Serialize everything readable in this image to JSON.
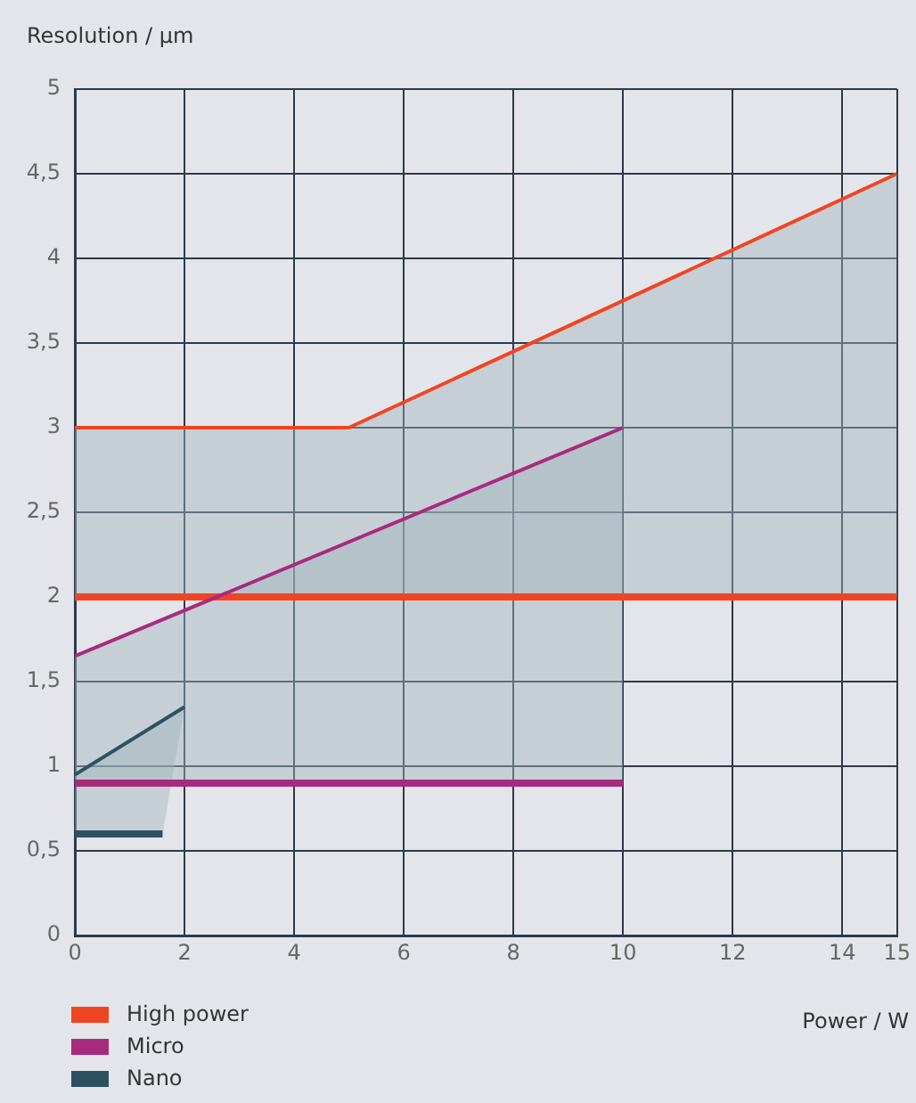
{
  "chart_data": {
    "type": "line",
    "xlabel": "Power / W",
    "ylabel": "Resolution / μm",
    "xlim": [
      0,
      15
    ],
    "xticks": [
      0,
      2,
      4,
      6,
      8,
      10,
      12,
      14,
      15
    ],
    "ylim": [
      0,
      5
    ],
    "yticks": [
      0,
      {
        "value": 0.5,
        "label": "0,5"
      },
      1,
      {
        "value": 1.5,
        "label": "1,5"
      },
      2,
      {
        "value": 2.5,
        "label": "2,5"
      },
      3,
      {
        "value": 3.5,
        "label": "3,5"
      },
      4,
      {
        "value": 4.5,
        "label": "4,5"
      },
      5
    ],
    "grid": true,
    "legend": "bottom left",
    "marker": "none",
    "line_style": "solid",
    "series": [
      {
        "name": "High power",
        "color": "#f04523",
        "x": [
          0,
          5,
          15
        ],
        "values": [
          3,
          3,
          4.5
        ],
        "lower": [
          2,
          2,
          2
        ],
        "upper": [
          3,
          3,
          4.5
        ]
      },
      {
        "name": "Micro",
        "color": "#a82a7d",
        "x": [
          0,
          10
        ],
        "values": [
          1.65,
          3
        ],
        "lower": [
          0.9,
          0.9
        ],
        "upper": [
          1.65,
          3
        ]
      },
      {
        "name": "Nano",
        "color": "#2c5262",
        "x": [
          0,
          1.6,
          2
        ],
        "values": [
          0.95,
          1.27,
          1.35
        ],
        "lower": [
          0.6,
          0.6,
          1.35
        ],
        "upper": [
          0.95,
          1.27,
          1.35
        ]
      },
      {
        "color": "#f04523",
        "x": [
          0,
          15
        ],
        "values": [
          2,
          2
        ]
      },
      {
        "color": "#a82a7d",
        "x": [
          0,
          10
        ],
        "values": [
          0.9,
          0.9
        ]
      },
      {
        "color": "#2c5262",
        "x": [
          0,
          1.6
        ],
        "values": [
          0.6,
          0.6
        ]
      }
    ]
  }
}
